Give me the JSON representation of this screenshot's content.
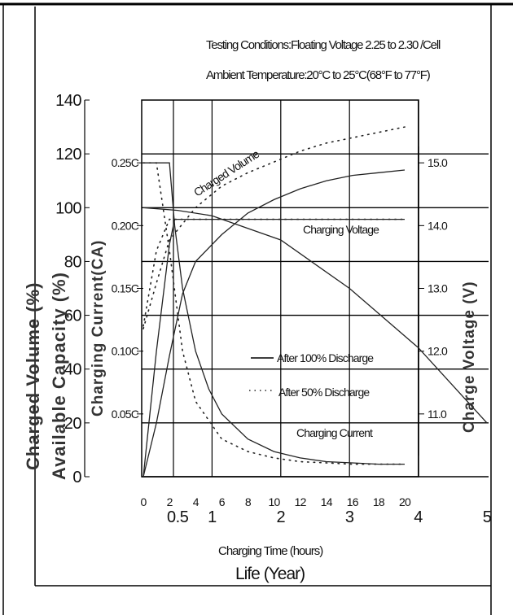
{
  "conditions": {
    "line1": "Testing Conditions:Floating Voltage 2.25 to 2.30  /Cell",
    "line2": "Ambient Temperature:20°C to 25°C(68°F to 77°F)"
  },
  "axes": {
    "left_outer_title": "Charged Volume (%)",
    "left_mid_title": "Available Capacity (%)",
    "left_inner_title": "Charging Current(CA)",
    "right_title": "Charge Voltage (V)",
    "x_title_1": "Charging Time (hours)",
    "x_title_2": "Life (Year)"
  },
  "ticks": {
    "capacity": [
      "0",
      "20",
      "40",
      "60",
      "80",
      "100",
      "120",
      "140"
    ],
    "current": [
      "0.05C",
      "0.10C",
      "0.15C",
      "0.20C",
      "0.25C"
    ],
    "voltage": [
      "11.0",
      "12.0",
      "13.0",
      "14.0",
      "15.0"
    ],
    "hours": [
      "0",
      "2",
      "4",
      "6",
      "8",
      "10",
      "12",
      "14",
      "16",
      "18",
      "20"
    ],
    "years": [
      "0.5",
      "1",
      "2",
      "3",
      "4",
      "5"
    ]
  },
  "annotations": {
    "charged_volume": "Charged Volume",
    "charging_voltage": "Charging Voltage",
    "charging_current": "Charging Current"
  },
  "legend": {
    "solid": "After 100% Discharge",
    "dotted": "After 50% Discharge"
  },
  "chart_data": {
    "type": "line",
    "title": "",
    "xlabel": "Charging Time (hours)",
    "xlim": [
      0,
      20
    ],
    "ylabel": "Charged Volume (%)",
    "ylim": [
      0,
      140
    ],
    "series": [
      {
        "name": "After 100% Discharge",
        "metric": "Charged Volume (%)",
        "x": [
          0,
          1,
          2,
          3,
          4,
          6,
          8,
          10,
          12,
          14,
          16,
          18,
          20
        ],
        "values": [
          0,
          20,
          45,
          68,
          80,
          90,
          98,
          103,
          107,
          110,
          112,
          113,
          114
        ]
      },
      {
        "name": "After 50% Discharge",
        "metric": "Charged Volume (%)",
        "x": [
          0,
          1,
          2,
          4,
          6,
          8,
          10,
          12,
          14,
          16,
          18,
          20
        ],
        "values": [
          55,
          72,
          88,
          100,
          108,
          113,
          117,
          121,
          124,
          126,
          128,
          130
        ]
      },
      {
        "name": "After 100% Discharge",
        "metric": "Charging Current (CA)",
        "x": [
          0,
          2,
          2.4,
          3,
          4,
          5,
          6,
          8,
          10,
          12,
          14,
          16,
          18,
          20
        ],
        "values": [
          0.25,
          0.25,
          0.2,
          0.15,
          0.1,
          0.07,
          0.05,
          0.03,
          0.02,
          0.015,
          0.012,
          0.011,
          0.01,
          0.01
        ]
      },
      {
        "name": "After 50% Discharge",
        "metric": "Charging Current (CA)",
        "x": [
          0,
          1,
          2,
          3,
          4,
          6,
          8,
          10,
          12,
          14,
          16,
          18,
          20
        ],
        "values": [
          0.25,
          0.25,
          0.18,
          0.1,
          0.06,
          0.03,
          0.02,
          0.015,
          0.012,
          0.011,
          0.01,
          0.01,
          0.01
        ]
      },
      {
        "name": "After 100% Discharge",
        "metric": "Charge Voltage (V)",
        "x": [
          0,
          1,
          2,
          2.4,
          4,
          6,
          8,
          10,
          12,
          14,
          16,
          18,
          20
        ],
        "values": [
          10.0,
          12.0,
          13.7,
          14.1,
          14.1,
          14.1,
          14.1,
          14.1,
          14.1,
          14.1,
          14.1,
          14.1,
          14.1
        ]
      },
      {
        "name": "After 50% Discharge",
        "metric": "Charge Voltage (V)",
        "x": [
          0,
          1,
          2,
          3,
          4,
          6,
          8,
          10,
          12,
          14,
          16,
          18,
          20
        ],
        "values": [
          12.4,
          13.6,
          14.1,
          14.1,
          14.1,
          14.1,
          14.1,
          14.1,
          14.1,
          14.1,
          14.1,
          14.1,
          14.1
        ]
      },
      {
        "name": "Available Capacity (%)",
        "metric": "Available Capacity (%) vs Life (Year)",
        "x": [
          0,
          0.5,
          1,
          2,
          3,
          4,
          5
        ],
        "values": [
          100,
          99,
          97,
          88,
          70,
          48,
          20
        ]
      }
    ],
    "secondary_axes": {
      "current_ylim": [
        0,
        0.3
      ],
      "voltage_ylim": [
        10.0,
        16.0
      ],
      "life_xlim": [
        0,
        5
      ],
      "capacity_ylim": [
        0,
        140
      ]
    },
    "grid": true
  }
}
